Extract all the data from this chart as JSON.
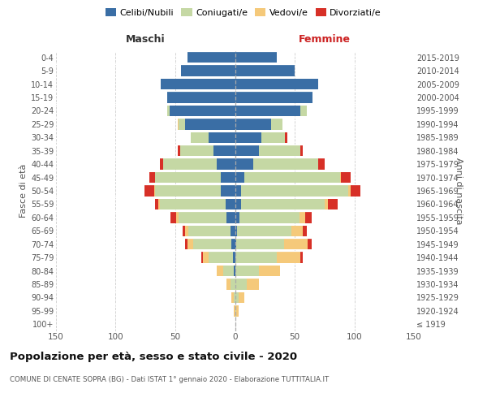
{
  "age_groups": [
    "100+",
    "95-99",
    "90-94",
    "85-89",
    "80-84",
    "75-79",
    "70-74",
    "65-69",
    "60-64",
    "55-59",
    "50-54",
    "45-49",
    "40-44",
    "35-39",
    "30-34",
    "25-29",
    "20-24",
    "15-19",
    "10-14",
    "5-9",
    "0-4"
  ],
  "birth_years": [
    "≤ 1919",
    "1920-1924",
    "1925-1929",
    "1930-1934",
    "1935-1939",
    "1940-1944",
    "1945-1949",
    "1950-1954",
    "1955-1959",
    "1960-1964",
    "1965-1969",
    "1970-1974",
    "1975-1979",
    "1980-1984",
    "1985-1989",
    "1990-1994",
    "1995-1999",
    "2000-2004",
    "2005-2009",
    "2010-2014",
    "2015-2019"
  ],
  "colors": {
    "celibi": "#3a6ea5",
    "coniugati": "#c5d8a4",
    "vedovi": "#f5c97a",
    "divorziati": "#d73027"
  },
  "maschi": {
    "celibi": [
      0,
      0,
      0,
      0,
      1,
      2,
      3,
      4,
      7,
      8,
      12,
      12,
      15,
      18,
      22,
      42,
      55,
      57,
      62,
      45,
      40
    ],
    "coniugati": [
      0,
      0,
      1,
      4,
      9,
      20,
      32,
      35,
      40,
      55,
      55,
      55,
      45,
      28,
      15,
      5,
      2,
      0,
      0,
      0,
      0
    ],
    "vedovi": [
      0,
      1,
      2,
      3,
      5,
      5,
      5,
      3,
      2,
      1,
      1,
      0,
      0,
      0,
      0,
      1,
      0,
      0,
      0,
      0,
      0
    ],
    "divorziati": [
      0,
      0,
      0,
      0,
      0,
      1,
      2,
      2,
      5,
      3,
      8,
      5,
      3,
      2,
      0,
      0,
      0,
      0,
      0,
      0,
      0
    ]
  },
  "femmine": {
    "celibi": [
      0,
      0,
      0,
      0,
      0,
      0,
      1,
      2,
      4,
      5,
      5,
      8,
      15,
      20,
      22,
      30,
      55,
      65,
      70,
      50,
      35
    ],
    "coniugati": [
      0,
      1,
      3,
      10,
      20,
      35,
      40,
      45,
      50,
      70,
      90,
      80,
      55,
      35,
      20,
      10,
      5,
      0,
      0,
      0,
      0
    ],
    "vedovi": [
      0,
      2,
      5,
      10,
      18,
      20,
      20,
      10,
      5,
      3,
      2,
      1,
      0,
      0,
      0,
      0,
      0,
      0,
      0,
      0,
      0
    ],
    "divorziati": [
      0,
      0,
      0,
      0,
      0,
      2,
      3,
      3,
      5,
      8,
      8,
      8,
      5,
      2,
      2,
      0,
      0,
      0,
      0,
      0,
      0
    ]
  },
  "xlim": 150,
  "title": "Popolazione per età, sesso e stato civile - 2020",
  "subtitle": "COMUNE DI CENATE SOPRA (BG) - Dati ISTAT 1° gennaio 2020 - Elaborazione TUTTITALIA.IT",
  "ylabel_left": "Fasce di età",
  "ylabel_right": "Anni di nascita",
  "xlabel_maschi": "Maschi",
  "xlabel_femmine": "Femmine",
  "legend_labels": [
    "Celibi/Nubili",
    "Coniugati/e",
    "Vedovi/e",
    "Divorziati/e"
  ],
  "bg_color": "#ffffff",
  "grid_color": "#cccccc"
}
